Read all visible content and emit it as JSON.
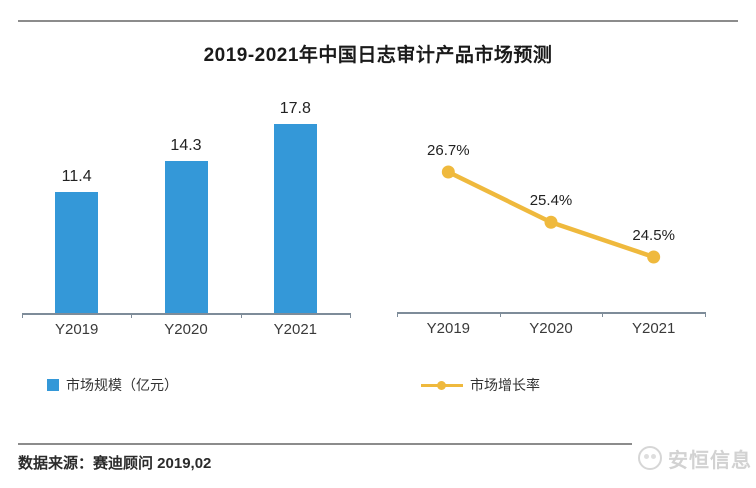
{
  "title": "2019-2021年中国日志审计产品市场预测",
  "footer": {
    "source": "数据来源：赛迪顾问   2019,02"
  },
  "watermark": {
    "text": "安恒信息"
  },
  "colors": {
    "bar": "#3498d8",
    "line": "#efb93d",
    "axis": "#7e8c99",
    "rule": "#8c8c8c",
    "watermark_text": "#d2d2d2"
  },
  "chart_data": [
    {
      "type": "bar",
      "title": "2019-2021年中国日志审计产品市场预测",
      "categories": [
        "Y2019",
        "Y2020",
        "Y2021"
      ],
      "values": [
        11.4,
        14.3,
        17.8
      ],
      "data_labels": [
        "11.4",
        "14.3",
        "17.8"
      ],
      "series_name": "市场规模（亿元）",
      "unit": "亿元",
      "xlabel": "",
      "ylabel": "",
      "ylim": [
        0,
        20
      ],
      "y_axis_visible": false,
      "grid": false,
      "legend_position": "bottom-left",
      "bar_color": "#3498d8"
    },
    {
      "type": "line",
      "categories": [
        "Y2019",
        "Y2020",
        "Y2021"
      ],
      "values": [
        26.7,
        25.4,
        24.5
      ],
      "data_labels": [
        "26.7%",
        "25.4%",
        "24.5%"
      ],
      "series_name": "市场增长率",
      "unit": "%",
      "xlabel": "",
      "ylabel": "",
      "ylim": [
        23,
        28
      ],
      "y_axis_visible": false,
      "grid": false,
      "legend_position": "bottom-left",
      "line_color": "#efb93d",
      "marker": "circle"
    }
  ]
}
